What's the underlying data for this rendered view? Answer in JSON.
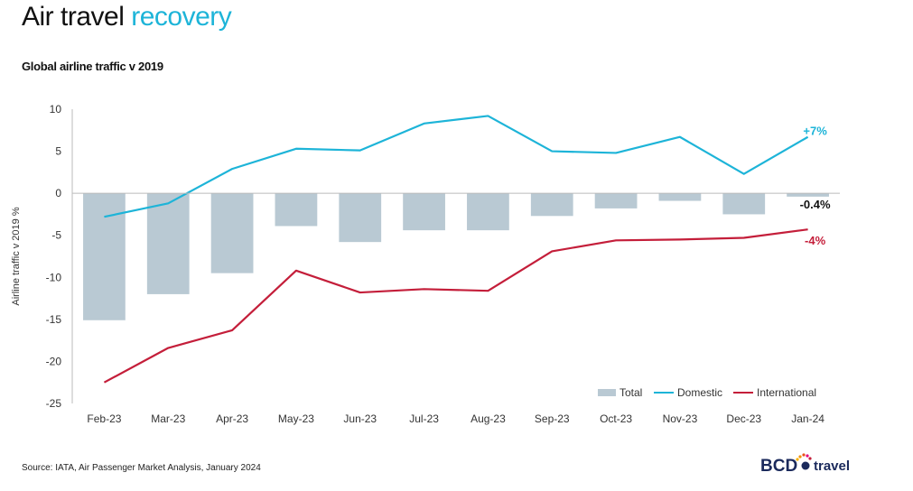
{
  "page": {
    "title_main": "Air travel",
    "title_accent": "recovery",
    "subtitle": "Global airline traffic v 2019",
    "source": "Source: IATA, Air Passenger Market Analysis, January 2024",
    "logo_text": "BCD",
    "logo_suffix": "travel"
  },
  "colors": {
    "total": "#b9c9d3",
    "domestic": "#1db4d8",
    "international": "#c41e3a",
    "accent": "#1db4d8",
    "logo_navy": "#1b2a5c"
  },
  "chart_data": {
    "type": "bar",
    "categories": [
      "Feb-23",
      "Mar-23",
      "Apr-23",
      "May-23",
      "Jun-23",
      "Jul-23",
      "Aug-23",
      "Sep-23",
      "Oct-23",
      "Nov-23",
      "Dec-23",
      "Jan-24"
    ],
    "ylabel": "Airline traffic v 2019 %",
    "ylim": [
      -25,
      10
    ],
    "yticks": [
      10,
      5,
      0,
      -5,
      -10,
      -15,
      -20,
      -25
    ],
    "series": [
      {
        "name": "Total",
        "kind": "bar",
        "values": [
          -15.1,
          -12.0,
          -9.5,
          -3.9,
          -5.8,
          -4.4,
          -4.4,
          -2.7,
          -1.8,
          -0.9,
          -2.5,
          -0.4
        ]
      },
      {
        "name": "Domestic",
        "kind": "line",
        "values": [
          -2.8,
          -1.2,
          2.9,
          5.3,
          5.1,
          8.3,
          9.2,
          5.0,
          4.8,
          6.7,
          2.3,
          6.7
        ]
      },
      {
        "name": "International",
        "kind": "line",
        "values": [
          -22.5,
          -18.4,
          -16.3,
          -9.2,
          -11.8,
          -11.4,
          -11.6,
          -6.9,
          -5.6,
          -5.5,
          -5.3,
          -4.3
        ]
      }
    ],
    "end_labels": {
      "domestic": "+7%",
      "total": "-0.4%",
      "international": "-4%"
    },
    "legend": {
      "position": "bottom-right",
      "entries": [
        "Total",
        "Domestic",
        "International"
      ]
    },
    "grid": false
  }
}
